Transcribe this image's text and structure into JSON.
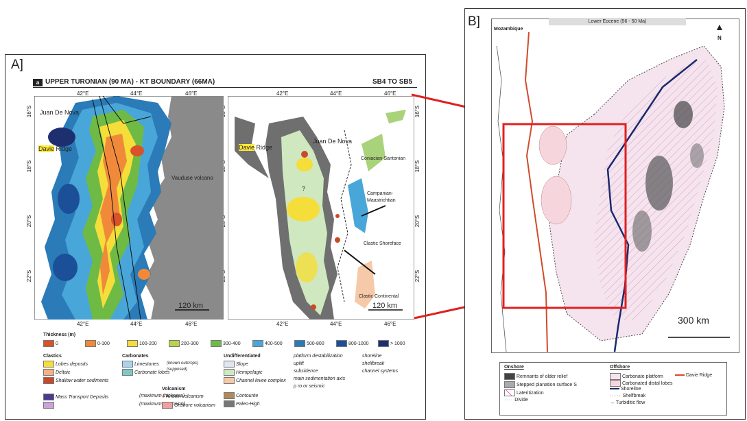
{
  "panel_a": {
    "label": "A]",
    "title": "UPPER TURONIAN (90 MA) - KT BOUNDARY (66MA)",
    "title_badge": "a",
    "sequence": "SB4 TO SB5",
    "longitudes_top": [
      "42°E",
      "44°E",
      "46°E"
    ],
    "longitudes_bottom": [
      "42°E",
      "44°E",
      "46°E"
    ],
    "latitudes": [
      "16°S",
      "18°S",
      "20°S",
      "22°S"
    ],
    "left_map": {
      "labels": {
        "juan_de_nova": "Juan De Nova",
        "davie_prefix": "Davie",
        "davie_suffix": " Ridge",
        "vauduse": "Vauduse volcano"
      },
      "scale": "120 km"
    },
    "right_map": {
      "labels": {
        "juan_de_nova": "Juan De Nova",
        "davie_prefix": "Davie",
        "davie_suffix": " Ridge",
        "coniacian": "Coniacian-Santonian",
        "campanian": "Campanian-\nMaastrichtian",
        "clastic_shoreface": "Clastic Shoreface",
        "clastic_continental": "Clastic Continental",
        "question": "?"
      },
      "scale": "120 km"
    },
    "legend": {
      "thickness_title": "Thickness (m)",
      "thickness": [
        {
          "label": "0",
          "color": "#d8522a"
        },
        {
          "label": "0-100",
          "color": "#f08a3a"
        },
        {
          "label": "100-200",
          "color": "#f5dd3a"
        },
        {
          "label": "200-300",
          "color": "#b7d34a"
        },
        {
          "label": "300-400",
          "color": "#6fba45"
        },
        {
          "label": "400-500",
          "color": "#49a6d8"
        },
        {
          "label": "500-800",
          "color": "#2a7bb8"
        },
        {
          "label": "800-1000",
          "color": "#1b4f98"
        },
        {
          "label": "> 1000",
          "color": "#1d2f6e"
        }
      ],
      "clastics_title": "Clastics",
      "clastics": [
        {
          "label": "Lobes deposits",
          "color": "#f5dd3a"
        },
        {
          "label": "Deltaic",
          "color": "#f4b183"
        },
        {
          "label": "Shallow water sediments",
          "color": "#c9492a"
        }
      ],
      "carbonates_title": "Carbonates",
      "carbonates": [
        {
          "label": "Limestones",
          "color": "#a9d3ef"
        },
        {
          "label": "Carbonate lobes",
          "color": "#7fc8c8"
        }
      ],
      "carbonates_note": "(known outcrops)\n(supposed)",
      "undiff_title": "Undifferentiated",
      "undiff": [
        {
          "label": "Slope",
          "color": "#dfe6f0"
        },
        {
          "label": "Hemipelagic",
          "color": "#cfe8c0"
        },
        {
          "label": "Channel levee complex",
          "color": "#f6c9a8"
        }
      ],
      "symbols": [
        "platform destabilization",
        "uplift",
        "subsidence",
        "main sedimentation axis",
        "ρ ro or seismic"
      ],
      "lines": [
        "shoreline",
        "shelfbreak",
        "channel systems"
      ],
      "mtd_title": "Mass Transport Deposits",
      "mtd_notes": [
        "(maximum thickness)",
        "(maximum extension)"
      ],
      "mtd_colors": [
        "#4d3b8a",
        "#c9a4d8"
      ],
      "volcanism_title": "Volcanism",
      "volcanism": [
        "Known volcanism",
        "Onshore volcanism"
      ],
      "volcanism_colors": [
        "#d94040",
        "#f0a0a0"
      ],
      "contourite": [
        "Contourite",
        "Paleo-High"
      ],
      "contourite_colors": [
        "#b08a5a",
        "#777777"
      ]
    }
  },
  "panel_b": {
    "label": "B]",
    "title": "Lower Eocene (56 - 50 Ma)",
    "mozambique": "Mozambique",
    "north": "N",
    "scale": "300 km",
    "legend": {
      "onshore_title": "Onshore",
      "onshore": [
        "Remnants of older relief",
        "Stepped planation surface S",
        "Lateritization",
        "Divide"
      ],
      "offshore_title": "Offshore",
      "offshore": [
        "Carbonate platform",
        "Carbonated distal lobes",
        "Shoreline",
        "Shelfbreak",
        "Turbiditic flow"
      ],
      "davie": "Davie Ridge"
    }
  },
  "colors": {
    "highlight_red": "#e02020",
    "map_gray": "#8a8a8a",
    "shoreline_navy": "#1a2a6c",
    "davie_ridge_red": "#d24a2a"
  }
}
